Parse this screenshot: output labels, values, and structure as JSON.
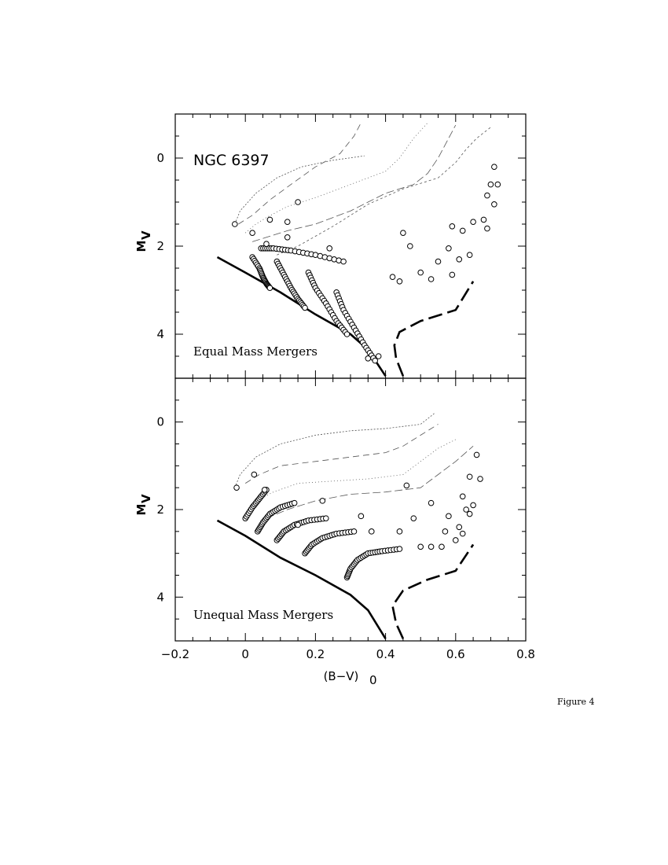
{
  "figure_caption": "Figure 4",
  "chart_data": [
    {
      "type": "line",
      "title": "NGC 6397",
      "panel_label": "Equal Mass Mergers",
      "xlabel": "",
      "ylabel": "M",
      "ylabel_sub": "V",
      "xlim": [
        -0.2,
        0.8
      ],
      "ylim": [
        5,
        -1
      ],
      "x_ticks": [
        -0.2,
        0,
        0.2,
        0.4,
        0.6,
        0.8
      ],
      "y_ticks": [
        0,
        2,
        4
      ],
      "y_tick_labels": [
        "0",
        "2",
        "4"
      ],
      "grid": false,
      "zams": [
        [
          -0.08,
          2.25
        ],
        [
          0.0,
          2.6
        ],
        [
          0.1,
          3.05
        ],
        [
          0.2,
          3.55
        ],
        [
          0.3,
          4.0
        ],
        [
          0.35,
          4.35
        ],
        [
          0.4,
          4.95
        ]
      ],
      "giant_branch": [
        [
          0.45,
          4.95
        ],
        [
          0.43,
          4.55
        ],
        [
          0.425,
          4.25
        ],
        [
          0.44,
          3.95
        ],
        [
          0.5,
          3.7
        ],
        [
          0.6,
          3.45
        ],
        [
          0.65,
          2.8
        ]
      ],
      "tracks": [
        {
          "x": [
            -0.03,
            -0.015,
            0.03,
            0.09,
            0.16,
            0.25,
            0.34
          ],
          "y": [
            1.5,
            1.2,
            0.8,
            0.45,
            0.2,
            0.05,
            -0.05
          ]
        },
        {
          "x": [
            -0.02,
            0.02,
            0.07,
            0.13,
            0.2,
            0.27,
            0.31,
            0.33
          ],
          "y": [
            1.5,
            1.3,
            0.95,
            0.6,
            0.2,
            -0.1,
            -0.5,
            -0.8
          ]
        },
        {
          "x": [
            0.0,
            0.03,
            0.06,
            0.12,
            0.2,
            0.3,
            0.4,
            0.44,
            0.48,
            0.52
          ],
          "y": [
            1.7,
            1.5,
            1.35,
            1.1,
            0.9,
            0.6,
            0.3,
            0.0,
            -0.45,
            -0.8
          ]
        },
        {
          "x": [
            0.02,
            0.06,
            0.12,
            0.2,
            0.3,
            0.4,
            0.48,
            0.52,
            0.55,
            0.58,
            0.6
          ],
          "y": [
            1.9,
            1.8,
            1.65,
            1.5,
            1.2,
            0.8,
            0.6,
            0.35,
            0.0,
            -0.45,
            -0.75
          ]
        },
        {
          "x": [
            0.09,
            0.15,
            0.25,
            0.35,
            0.45,
            0.55,
            0.6,
            0.63,
            0.66,
            0.7
          ],
          "y": [
            2.2,
            2.0,
            1.55,
            1.05,
            0.7,
            0.45,
            0.1,
            -0.2,
            -0.45,
            -0.7
          ]
        }
      ],
      "sequences": [
        {
          "x": [
            0.02,
            0.04,
            0.05,
            0.06,
            0.07
          ],
          "y": [
            2.25,
            2.5,
            2.7,
            2.85,
            2.95
          ]
        },
        {
          "x": [
            0.09,
            0.11,
            0.13,
            0.15,
            0.17
          ],
          "y": [
            2.35,
            2.65,
            2.95,
            3.2,
            3.4
          ]
        },
        {
          "x": [
            0.18,
            0.2,
            0.23,
            0.26,
            0.29
          ],
          "y": [
            2.6,
            2.95,
            3.3,
            3.7,
            4.0
          ]
        },
        {
          "x": [
            0.26,
            0.28,
            0.31,
            0.34,
            0.37
          ],
          "y": [
            3.05,
            3.45,
            3.85,
            4.25,
            4.6
          ]
        },
        {
          "x": [
            0.045,
            0.08,
            0.13,
            0.2,
            0.28
          ],
          "y": [
            2.05,
            2.05,
            2.1,
            2.2,
            2.35
          ]
        }
      ],
      "markers": [
        {
          "x": -0.03,
          "y": 1.5
        },
        {
          "x": 0.02,
          "y": 1.7
        },
        {
          "x": 0.07,
          "y": 1.4
        },
        {
          "x": 0.15,
          "y": 1.0
        },
        {
          "x": 0.12,
          "y": 1.45
        },
        {
          "x": 0.12,
          "y": 1.8
        },
        {
          "x": 0.06,
          "y": 1.95
        },
        {
          "x": 0.24,
          "y": 2.05
        },
        {
          "x": 0.45,
          "y": 1.7
        },
        {
          "x": 0.59,
          "y": 1.55
        },
        {
          "x": 0.62,
          "y": 1.65
        },
        {
          "x": 0.65,
          "y": 1.45
        },
        {
          "x": 0.68,
          "y": 1.4
        },
        {
          "x": 0.69,
          "y": 1.6
        },
        {
          "x": 0.71,
          "y": 1.05
        },
        {
          "x": 0.69,
          "y": 0.85
        },
        {
          "x": 0.7,
          "y": 0.6
        },
        {
          "x": 0.72,
          "y": 0.6
        },
        {
          "x": 0.71,
          "y": 0.2
        },
        {
          "x": 0.55,
          "y": 2.35
        },
        {
          "x": 0.5,
          "y": 2.6
        },
        {
          "x": 0.47,
          "y": 2.0
        },
        {
          "x": 0.58,
          "y": 2.05
        },
        {
          "x": 0.61,
          "y": 2.3
        },
        {
          "x": 0.64,
          "y": 2.2
        },
        {
          "x": 0.35,
          "y": 4.55
        },
        {
          "x": 0.38,
          "y": 4.5
        },
        {
          "x": 0.42,
          "y": 2.7
        },
        {
          "x": 0.44,
          "y": 2.8
        },
        {
          "x": 0.53,
          "y": 2.75
        },
        {
          "x": 0.59,
          "y": 2.65
        }
      ]
    },
    {
      "type": "line",
      "title": "",
      "panel_label": "Unequal Mass Mergers",
      "xlabel": "(B−V)",
      "xlabel_sub": "0",
      "ylabel": "M",
      "ylabel_sub": "V",
      "xlim": [
        -0.2,
        0.8
      ],
      "ylim": [
        5,
        -1
      ],
      "x_ticks": [
        -0.2,
        0,
        0.2,
        0.4,
        0.6,
        0.8
      ],
      "x_tick_labels": [
        "−0.2",
        "0",
        "0.2",
        "0.4",
        "0.6",
        "0.8"
      ],
      "y_ticks": [
        0,
        2,
        4
      ],
      "y_tick_labels": [
        "0",
        "2",
        "4"
      ],
      "grid": false,
      "zams": [
        [
          -0.08,
          2.25
        ],
        [
          0.0,
          2.6
        ],
        [
          0.1,
          3.1
        ],
        [
          0.2,
          3.5
        ],
        [
          0.3,
          3.95
        ],
        [
          0.35,
          4.3
        ],
        [
          0.4,
          4.95
        ]
      ],
      "giant_branch": [
        [
          0.45,
          4.95
        ],
        [
          0.43,
          4.6
        ],
        [
          0.42,
          4.2
        ],
        [
          0.45,
          3.85
        ],
        [
          0.52,
          3.6
        ],
        [
          0.6,
          3.4
        ],
        [
          0.65,
          2.8
        ]
      ],
      "tracks": [
        {
          "x": [
            -0.03,
            -0.015,
            0.03,
            0.1,
            0.2,
            0.3,
            0.4,
            0.5,
            0.54
          ],
          "y": [
            1.5,
            1.2,
            0.8,
            0.5,
            0.3,
            0.2,
            0.15,
            0.05,
            -0.2
          ]
        },
        {
          "x": [
            0.0,
            0.04,
            0.1,
            0.2,
            0.3,
            0.4,
            0.45,
            0.5,
            0.55
          ],
          "y": [
            1.4,
            1.2,
            1.0,
            0.9,
            0.8,
            0.7,
            0.55,
            0.3,
            0.05
          ]
        },
        {
          "x": [
            0.03,
            0.08,
            0.15,
            0.25,
            0.35,
            0.45,
            0.5,
            0.55,
            0.6
          ],
          "y": [
            1.8,
            1.6,
            1.4,
            1.35,
            1.3,
            1.2,
            0.9,
            0.6,
            0.4
          ]
        },
        {
          "x": [
            0.06,
            0.12,
            0.2,
            0.3,
            0.4,
            0.5,
            0.55,
            0.6,
            0.65
          ],
          "y": [
            2.2,
            2.0,
            1.8,
            1.65,
            1.6,
            1.5,
            1.2,
            0.9,
            0.55
          ]
        }
      ],
      "sequences": [
        {
          "x": [
            0.0,
            0.02,
            0.04,
            0.06
          ],
          "y": [
            2.2,
            1.95,
            1.75,
            1.55
          ]
        },
        {
          "x": [
            0.035,
            0.05,
            0.07,
            0.1,
            0.14
          ],
          "y": [
            2.5,
            2.3,
            2.1,
            1.95,
            1.85
          ]
        },
        {
          "x": [
            0.09,
            0.11,
            0.14,
            0.18,
            0.23
          ],
          "y": [
            2.7,
            2.5,
            2.35,
            2.25,
            2.2
          ]
        },
        {
          "x": [
            0.17,
            0.19,
            0.22,
            0.26,
            0.31
          ],
          "y": [
            3.0,
            2.8,
            2.65,
            2.55,
            2.5
          ]
        },
        {
          "x": [
            0.29,
            0.3,
            0.32,
            0.35,
            0.39,
            0.44
          ],
          "y": [
            3.55,
            3.35,
            3.15,
            3.0,
            2.95,
            2.9
          ]
        }
      ],
      "markers": [
        {
          "x": -0.025,
          "y": 1.5
        },
        {
          "x": 0.025,
          "y": 1.2
        },
        {
          "x": 0.055,
          "y": 1.55
        },
        {
          "x": 0.15,
          "y": 2.35
        },
        {
          "x": 0.22,
          "y": 1.8
        },
        {
          "x": 0.33,
          "y": 2.15
        },
        {
          "x": 0.36,
          "y": 2.5
        },
        {
          "x": 0.44,
          "y": 2.5
        },
        {
          "x": 0.46,
          "y": 1.45
        },
        {
          "x": 0.48,
          "y": 2.2
        },
        {
          "x": 0.5,
          "y": 2.85
        },
        {
          "x": 0.53,
          "y": 2.85
        },
        {
          "x": 0.53,
          "y": 1.85
        },
        {
          "x": 0.56,
          "y": 2.85
        },
        {
          "x": 0.57,
          "y": 2.5
        },
        {
          "x": 0.58,
          "y": 2.15
        },
        {
          "x": 0.6,
          "y": 2.7
        },
        {
          "x": 0.61,
          "y": 2.4
        },
        {
          "x": 0.62,
          "y": 1.7
        },
        {
          "x": 0.63,
          "y": 2.0
        },
        {
          "x": 0.64,
          "y": 2.1
        },
        {
          "x": 0.62,
          "y": 2.55
        },
        {
          "x": 0.64,
          "y": 1.25
        },
        {
          "x": 0.65,
          "y": 1.9
        },
        {
          "x": 0.66,
          "y": 0.75
        },
        {
          "x": 0.67,
          "y": 1.3
        }
      ]
    }
  ]
}
